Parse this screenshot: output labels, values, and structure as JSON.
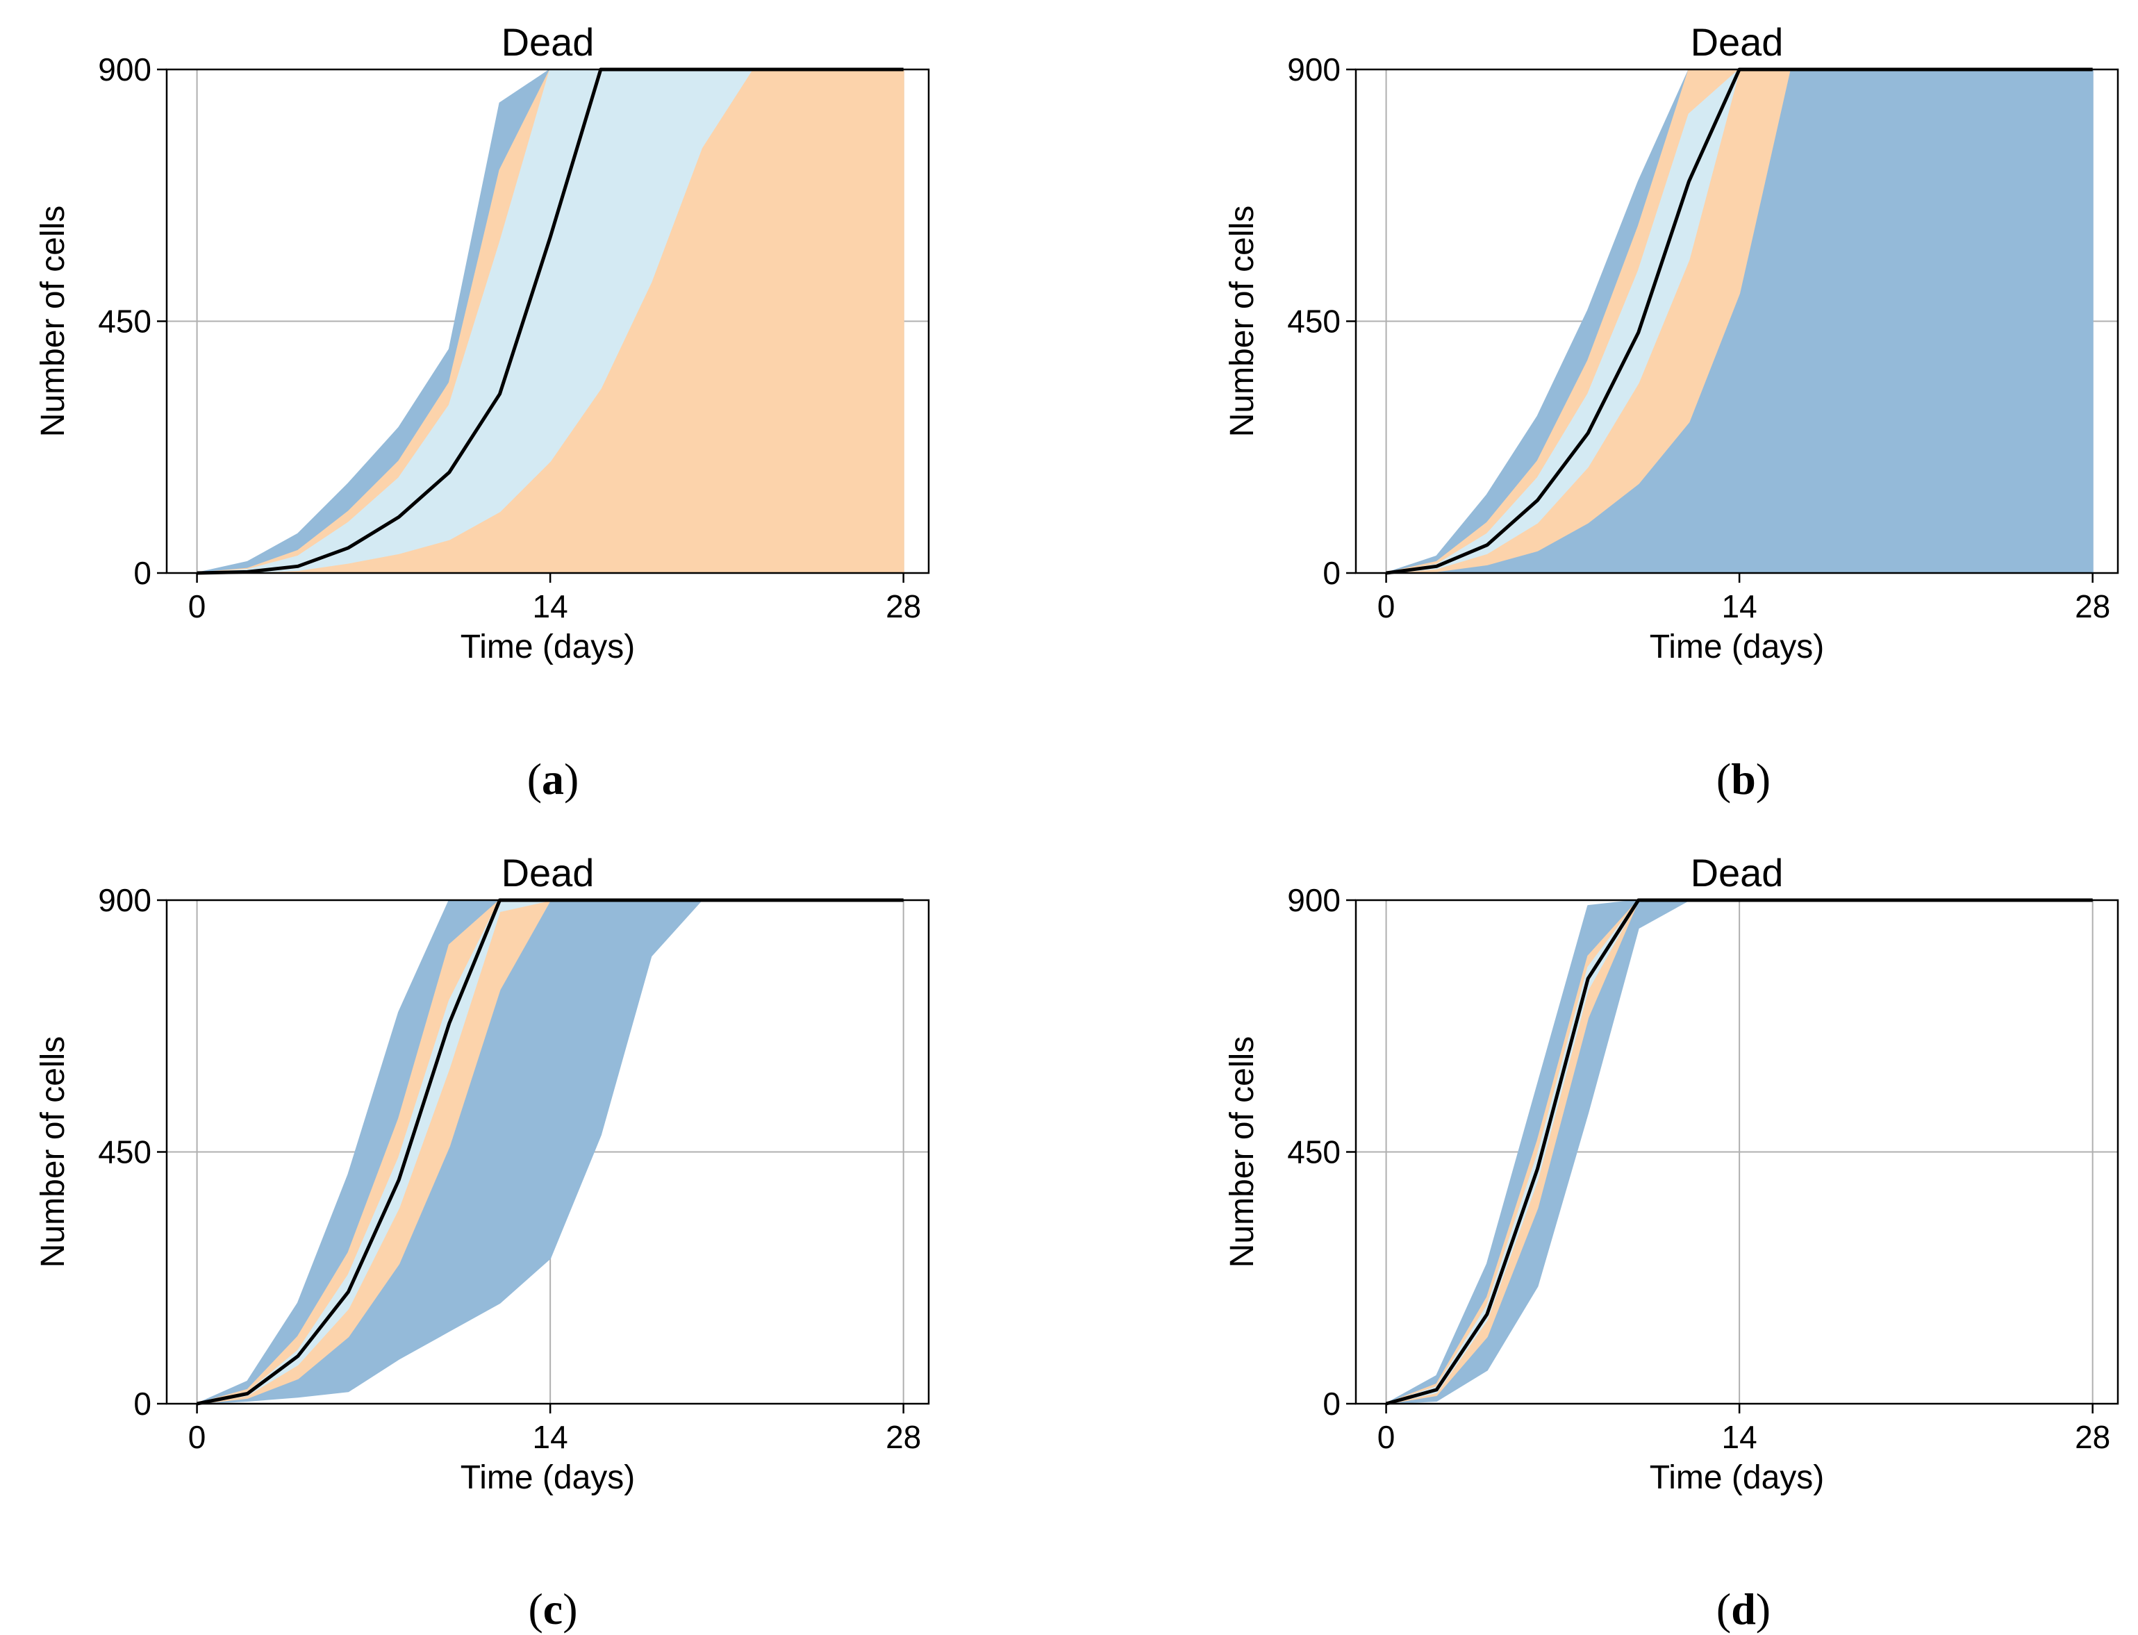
{
  "colors": {
    "dark_blue": "#94BAD9",
    "orange": "#FCD3AB",
    "light_blue": "#D4EAF3",
    "median": "#000000",
    "grid": "#b0b0b0"
  },
  "chart_data": [
    {
      "id": "a",
      "type": "area",
      "title": "Dead",
      "xlabel": "Time (days)",
      "ylabel": "Number of cells",
      "xlim": [
        -1.2,
        29
      ],
      "ylim": [
        0,
        900
      ],
      "xticks": [
        "0",
        "14",
        "28"
      ],
      "yticks": [
        "0",
        "450",
        "900"
      ],
      "grid": true,
      "caption_letter": "a",
      "x": [
        0,
        2,
        4,
        6,
        8,
        10,
        12,
        14,
        16,
        18,
        20,
        22,
        24,
        26,
        28
      ],
      "series": [
        {
          "name": "outer band (dark blue)",
          "color_key": "dark_blue",
          "lower": [
            0,
            2,
            8,
            22,
            50,
            100,
            180,
            290,
            430,
            600,
            760,
            900,
            900,
            900,
            900
          ],
          "upper": [
            0,
            20,
            70,
            160,
            260,
            400,
            840,
            900,
            900,
            900,
            900,
            900,
            900,
            900,
            900
          ]
        },
        {
          "name": "middle band (orange)",
          "color_key": "orange",
          "lower": [
            0,
            0,
            0,
            0,
            0,
            0,
            0,
            0,
            0,
            0,
            0,
            0,
            0,
            0,
            0
          ],
          "upper": [
            0,
            8,
            40,
            110,
            200,
            340,
            720,
            900,
            900,
            900,
            900,
            900,
            900,
            900,
            900
          ]
        },
        {
          "name": "inner band (light blue)",
          "color_key": "light_blue",
          "lower": [
            0,
            1,
            5,
            18,
            35,
            60,
            110,
            200,
            330,
            520,
            760,
            900,
            900,
            900,
            900
          ],
          "upper": [
            0,
            6,
            30,
            90,
            170,
            300,
            590,
            900,
            900,
            900,
            900,
            900,
            900,
            900,
            900
          ]
        },
        {
          "name": "median",
          "color_key": "median",
          "values": [
            0,
            2,
            12,
            45,
            100,
            180,
            320,
            600,
            900,
            900,
            900,
            900,
            900,
            900,
            900
          ]
        }
      ]
    },
    {
      "id": "b",
      "type": "area",
      "title": "Dead",
      "xlabel": "Time (days)",
      "ylabel": "Number of cells",
      "xlim": [
        -1.2,
        29
      ],
      "ylim": [
        0,
        900
      ],
      "xticks": [
        "0",
        "14",
        "28"
      ],
      "yticks": [
        "0",
        "450",
        "900"
      ],
      "grid": true,
      "caption_letter": "b",
      "x": [
        0,
        2,
        4,
        6,
        8,
        10,
        12,
        14,
        16,
        18,
        20,
        22,
        24,
        26,
        28
      ],
      "series": [
        {
          "name": "outer band (dark blue)",
          "color_key": "dark_blue",
          "lower": [
            0,
            0,
            0,
            0,
            0,
            0,
            0,
            0,
            0,
            0,
            0,
            0,
            0,
            0,
            0
          ],
          "upper": [
            0,
            30,
            140,
            280,
            470,
            700,
            900,
            900,
            900,
            900,
            900,
            900,
            900,
            900,
            900
          ]
        },
        {
          "name": "middle band (orange)",
          "color_key": "orange",
          "lower": [
            0,
            3,
            15,
            40,
            90,
            160,
            270,
            500,
            900,
            900,
            900,
            900,
            900,
            900,
            900
          ],
          "upper": [
            0,
            20,
            90,
            200,
            380,
            620,
            900,
            900,
            900,
            900,
            900,
            900,
            900,
            900,
            900
          ]
        },
        {
          "name": "inner band (light blue)",
          "color_key": "light_blue",
          "lower": [
            0,
            8,
            35,
            90,
            190,
            340,
            560,
            900,
            900,
            900,
            900,
            900,
            900,
            900,
            900
          ],
          "upper": [
            0,
            15,
            70,
            170,
            320,
            540,
            820,
            900,
            900,
            900,
            900,
            900,
            900,
            900,
            900
          ]
        },
        {
          "name": "median",
          "color_key": "median",
          "values": [
            0,
            12,
            50,
            130,
            250,
            430,
            700,
            900,
            900,
            900,
            900,
            900,
            900,
            900,
            900
          ]
        }
      ]
    },
    {
      "id": "c",
      "type": "area",
      "title": "Dead",
      "xlabel": "Time (days)",
      "ylabel": "Number of cells",
      "xlim": [
        -1.2,
        29
      ],
      "ylim": [
        0,
        900
      ],
      "xticks": [
        "0",
        "14",
        "28"
      ],
      "yticks": [
        "0",
        "450",
        "900"
      ],
      "grid": true,
      "caption_letter": "c",
      "x": [
        0,
        2,
        4,
        6,
        8,
        10,
        12,
        14,
        16,
        18,
        20,
        22,
        24,
        26,
        28
      ],
      "series": [
        {
          "name": "outer band (dark blue)",
          "color_key": "dark_blue",
          "lower": [
            0,
            5,
            12,
            22,
            80,
            130,
            180,
            260,
            480,
            800,
            900,
            900,
            900,
            900,
            900
          ],
          "upper": [
            0,
            40,
            180,
            410,
            700,
            900,
            900,
            900,
            900,
            900,
            900,
            900,
            900,
            900,
            900
          ]
        },
        {
          "name": "middle band (orange)",
          "color_key": "orange",
          "lower": [
            0,
            10,
            45,
            120,
            250,
            460,
            740,
            900,
            900,
            900,
            900,
            900,
            900,
            900,
            900
          ],
          "upper": [
            0,
            25,
            120,
            270,
            510,
            820,
            900,
            900,
            900,
            900,
            900,
            900,
            900,
            900,
            900
          ]
        },
        {
          "name": "inner band (light blue)",
          "color_key": "light_blue",
          "lower": [
            0,
            15,
            70,
            170,
            350,
            600,
            880,
            900,
            900,
            900,
            900,
            900,
            900,
            900,
            900
          ],
          "upper": [
            0,
            20,
            95,
            230,
            440,
            720,
            900,
            900,
            900,
            900,
            900,
            900,
            900,
            900,
            900
          ]
        },
        {
          "name": "median",
          "color_key": "median",
          "values": [
            0,
            18,
            85,
            200,
            400,
            680,
            900,
            900,
            900,
            900,
            900,
            900,
            900,
            900,
            900
          ]
        }
      ]
    },
    {
      "id": "d",
      "type": "area",
      "title": "Dead",
      "xlabel": "Time (days)",
      "ylabel": "Number of cells",
      "xlim": [
        -1.2,
        29
      ],
      "ylim": [
        0,
        900
      ],
      "xticks": [
        "0",
        "14",
        "28"
      ],
      "yticks": [
        "0",
        "450",
        "900"
      ],
      "grid": true,
      "caption_letter": "d",
      "x": [
        0,
        2,
        4,
        6,
        8,
        10,
        12,
        14,
        16,
        18,
        20,
        22,
        24,
        26,
        28
      ],
      "series": [
        {
          "name": "outer band (dark blue)",
          "color_key": "dark_blue",
          "lower": [
            0,
            5,
            60,
            210,
            520,
            850,
            900,
            900,
            900,
            900,
            900,
            900,
            900,
            900,
            900
          ],
          "upper": [
            0,
            50,
            250,
            570,
            890,
            900,
            900,
            900,
            900,
            900,
            900,
            900,
            900,
            900,
            900
          ]
        },
        {
          "name": "middle band (orange)",
          "color_key": "orange",
          "lower": [
            0,
            15,
            120,
            350,
            690,
            900,
            900,
            900,
            900,
            900,
            900,
            900,
            900,
            900,
            900
          ],
          "upper": [
            0,
            35,
            190,
            470,
            800,
            900,
            900,
            900,
            900,
            900,
            900,
            900,
            900,
            900,
            900
          ]
        },
        {
          "name": "inner band (light blue)",
          "color_key": "light_blue",
          "lower": [
            0,
            20,
            150,
            400,
            740,
            900,
            900,
            900,
            900,
            900,
            900,
            900,
            900,
            900,
            900
          ],
          "upper": [
            0,
            30,
            175,
            445,
            780,
            900,
            900,
            900,
            900,
            900,
            900,
            900,
            900,
            900,
            900
          ]
        },
        {
          "name": "median",
          "color_key": "median",
          "values": [
            0,
            25,
            160,
            420,
            760,
            900,
            900,
            900,
            900,
            900,
            900,
            900,
            900,
            900,
            900
          ]
        }
      ]
    }
  ]
}
